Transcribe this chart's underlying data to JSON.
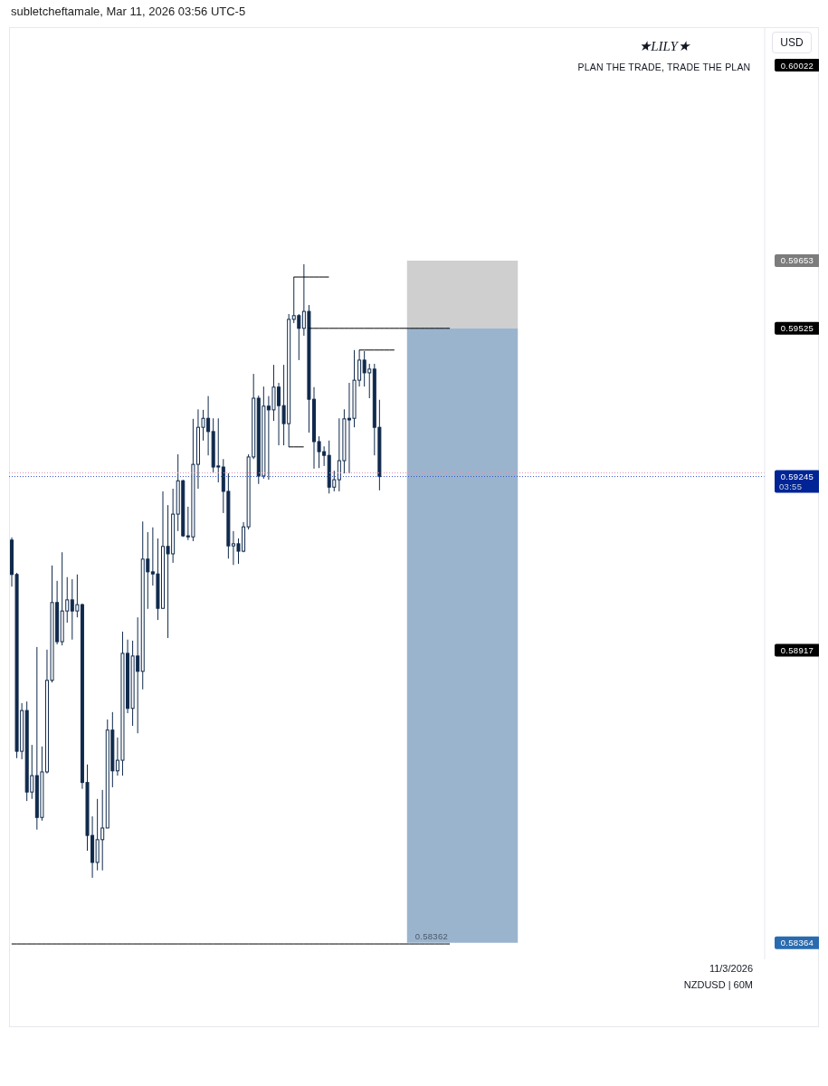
{
  "chart_data": {
    "type": "candlestick",
    "title": "★LILY★",
    "subtitle": "PLAN THE TRADE, TRADE THE PLAN",
    "ylabel": "USD",
    "categories": [
      null,
      null,
      null,
      null,
      null,
      null,
      null,
      null,
      null,
      null,
      null,
      null,
      null,
      null,
      null,
      null,
      null,
      null,
      null,
      null,
      null,
      null,
      null,
      null,
      null,
      null,
      null,
      null,
      null,
      null,
      null,
      null,
      null,
      null,
      null,
      null,
      null,
      null,
      null,
      null,
      null,
      null,
      null,
      null,
      null,
      null,
      null,
      null,
      null,
      null,
      null,
      null,
      null,
      null,
      null,
      null,
      null,
      null,
      null,
      null,
      null,
      null,
      null,
      null,
      null,
      null,
      null,
      null,
      null,
      null,
      null,
      null,
      null,
      null,
      null,
      null,
      null,
      null,
      null,
      null,
      null,
      null,
      null,
      null,
      null,
      null,
      null,
      null,
      null,
      null,
      null,
      null,
      null,
      null,
      null,
      null,
      null,
      null,
      null,
      null,
      null,
      null,
      null,
      null,
      null,
      null,
      null,
      null,
      null,
      null,
      null,
      null,
      null,
      null,
      null,
      null,
      null,
      null,
      null,
      null,
      null,
      null,
      null,
      null,
      null,
      null,
      null,
      null,
      null,
      null,
      null,
      null,
      null,
      null,
      null,
      null,
      null,
      null,
      null,
      null,
      null,
      null,
      null,
      null,
      null,
      null,
      null,
      null,
      null,
      null
    ],
    "series": [
      {
        "color": "#102a4c",
        "ohlc": [
          [
            0.59125,
            0.5913,
            0.59037,
            0.5906
          ],
          [
            0.5906,
            0.59063,
            0.58713,
            0.58726
          ],
          [
            0.58726,
            0.58817,
            0.58711,
            0.58803
          ],
          [
            0.58803,
            0.5882,
            0.58632,
            0.58649
          ],
          [
            0.58649,
            0.58738,
            0.58636,
            0.5868
          ],
          [
            0.5868,
            0.58923,
            0.58578,
            0.58601
          ],
          [
            0.58601,
            0.58735,
            0.58595,
            0.58687
          ],
          [
            0.58687,
            0.58918,
            0.58684,
            0.5886
          ],
          [
            0.5886,
            0.59077,
            0.58856,
            0.59007
          ],
          [
            0.59007,
            0.59048,
            0.58928,
            0.58933
          ],
          [
            0.58933,
            0.59102,
            0.58926,
            0.58991
          ],
          [
            0.58991,
            0.59055,
            0.58969,
            0.59012
          ],
          [
            0.59012,
            0.59051,
            0.58937,
            0.58991
          ],
          [
            0.58991,
            0.5906,
            0.58979,
            0.59003
          ],
          [
            0.59003,
            0.59005,
            0.58655,
            0.58667
          ],
          [
            0.58667,
            0.58701,
            0.58538,
            0.58567
          ],
          [
            0.58567,
            0.58603,
            0.58487,
            0.58516
          ],
          [
            0.58516,
            0.58636,
            0.58501,
            0.58559
          ],
          [
            0.58559,
            0.58653,
            0.58501,
            0.58581
          ],
          [
            0.58581,
            0.58786,
            0.58581,
            0.58766
          ],
          [
            0.58766,
            0.588,
            0.58658,
            0.58689
          ],
          [
            0.58689,
            0.58752,
            0.5868,
            0.58709
          ],
          [
            0.58709,
            0.58952,
            0.5868,
            0.58911
          ],
          [
            0.58911,
            0.58937,
            0.58798,
            0.58807
          ],
          [
            0.58807,
            0.58935,
            0.58774,
            0.58906
          ],
          [
            0.58906,
            0.58979,
            0.5876,
            0.58877
          ],
          [
            0.58877,
            0.5916,
            0.58843,
            0.59089
          ],
          [
            0.59089,
            0.5914,
            0.58995,
            0.59065
          ],
          [
            0.59065,
            0.59149,
            0.59039,
            0.59061
          ],
          [
            0.59061,
            0.59128,
            0.58974,
            0.58996
          ],
          [
            0.58996,
            0.59217,
            0.58995,
            0.59113
          ],
          [
            0.59113,
            0.59191,
            0.5894,
            0.59099
          ],
          [
            0.59099,
            0.59222,
            0.59082,
            0.59174
          ],
          [
            0.59174,
            0.59287,
            0.59142,
            0.59237
          ],
          [
            0.59237,
            0.59239,
            0.59131,
            0.59133
          ],
          [
            0.59133,
            0.59188,
            0.59125,
            0.59131
          ],
          [
            0.59131,
            0.59354,
            0.59123,
            0.59268
          ],
          [
            0.59268,
            0.59372,
            0.59222,
            0.59338
          ],
          [
            0.59338,
            0.59371,
            0.59313,
            0.59355
          ],
          [
            0.59355,
            0.59397,
            0.59285,
            0.5933
          ],
          [
            0.5933,
            0.59355,
            0.59253,
            0.59263
          ],
          [
            0.59265,
            0.59355,
            0.59234,
            0.59263
          ],
          [
            0.59263,
            0.59278,
            0.59176,
            0.59217
          ],
          [
            0.59217,
            0.59251,
            0.5909,
            0.59114
          ],
          [
            0.59114,
            0.59142,
            0.59078,
            0.59118
          ],
          [
            0.59118,
            0.59128,
            0.5908,
            0.59104
          ],
          [
            0.59104,
            0.59159,
            0.59102,
            0.5915
          ],
          [
            0.5915,
            0.59287,
            0.59145,
            0.59282
          ],
          [
            0.59282,
            0.59439,
            0.59278,
            0.59393
          ],
          [
            0.59393,
            0.59398,
            0.59231,
            0.59246
          ],
          [
            0.59246,
            0.59415,
            0.59241,
            0.59378
          ],
          [
            0.59378,
            0.59397,
            0.59239,
            0.59371
          ],
          [
            0.59371,
            0.59456,
            0.5935,
            0.59414
          ],
          [
            0.59414,
            0.59422,
            0.59304,
            0.59379
          ],
          [
            0.59379,
            0.59456,
            0.59304,
            0.59345
          ],
          [
            0.59345,
            0.59552,
            0.59301,
            0.59542
          ],
          [
            0.59542,
            0.59622,
            0.59535,
            0.59549
          ],
          [
            0.59549,
            0.59552,
            0.59465,
            0.59525
          ],
          [
            0.59525,
            0.59646,
            0.59511,
            0.59557
          ],
          [
            0.59557,
            0.59569,
            0.59328,
            0.59391
          ],
          [
            0.59391,
            0.59414,
            0.5926,
            0.59311
          ],
          [
            0.59311,
            0.59321,
            0.59261,
            0.59292
          ],
          [
            0.59292,
            0.59302,
            0.59265,
            0.59285
          ],
          [
            0.59285,
            0.59313,
            0.59213,
            0.59225
          ],
          [
            0.59225,
            0.59256,
            0.59217,
            0.59239
          ],
          [
            0.59239,
            0.59355,
            0.59217,
            0.59275
          ],
          [
            0.59275,
            0.59372,
            0.59251,
            0.59354
          ],
          [
            0.59355,
            0.59422,
            0.59251,
            0.59352
          ],
          [
            0.59355,
            0.59484,
            0.59338,
            0.59427
          ],
          [
            0.59427,
            0.59484,
            0.59415,
            0.59465
          ],
          [
            0.59465,
            0.59482,
            0.59415,
            0.59441
          ],
          [
            0.59441,
            0.59458,
            0.59393,
            0.59448
          ],
          [
            0.59448,
            0.59458,
            0.59285,
            0.59338
          ],
          [
            0.59338,
            0.5939,
            0.59219,
            0.59245
          ],
          null,
          null,
          null,
          null,
          null,
          null,
          null,
          null,
          null,
          null,
          null,
          null,
          null,
          null,
          null,
          null,
          null,
          null,
          null,
          null,
          null,
          null,
          null,
          null,
          null,
          null,
          null,
          null,
          null,
          null,
          null,
          null,
          null,
          null,
          null,
          null,
          null,
          null,
          null,
          null,
          null,
          null,
          null,
          null,
          null,
          null,
          null,
          null,
          null,
          null,
          null,
          null,
          null,
          null,
          null,
          null,
          null,
          null,
          null,
          null,
          null,
          null,
          null,
          null,
          null,
          null,
          null,
          null,
          null,
          null,
          null,
          null,
          null,
          null,
          null,
          null
        ]
      },
      {
        "type": "line",
        "color": "#000000",
        "values": [
          null,
          null,
          null,
          null,
          null,
          null,
          null,
          null,
          null,
          null,
          null,
          null,
          null,
          null,
          null,
          null,
          null,
          null,
          null,
          null,
          null,
          null,
          null,
          null,
          null,
          null,
          null,
          null,
          null,
          null,
          null,
          null,
          null,
          null,
          null,
          null,
          null,
          null,
          null,
          null,
          null,
          null,
          null,
          null,
          null,
          null,
          null,
          null,
          null,
          null,
          null,
          null,
          null,
          null,
          null,
          null,
          0.59622,
          0.59622,
          0.59622,
          0.59622,
          0.59622,
          0.59622,
          0.59622,
          0.59622,
          null,
          null,
          null,
          null,
          null,
          null,
          null,
          null,
          null,
          null,
          null,
          null,
          null,
          null,
          null,
          null,
          null,
          null,
          null,
          null,
          null,
          null,
          null,
          null,
          null,
          null,
          null,
          null,
          null,
          null,
          null,
          null,
          null,
          null,
          null,
          null,
          null,
          null,
          null,
          null,
          null,
          null,
          null,
          null,
          null,
          null,
          null,
          null,
          null,
          null,
          null,
          null,
          null,
          null,
          null,
          null,
          null,
          null,
          null,
          null,
          null,
          null,
          null,
          null,
          null,
          null,
          null,
          null,
          null,
          null,
          null,
          null,
          null,
          null,
          null,
          null,
          null,
          null,
          null,
          null,
          null,
          null,
          null,
          null,
          null,
          null
        ]
      },
      {
        "type": "line",
        "color": "#000000",
        "values": [
          null,
          null,
          null,
          null,
          null,
          null,
          null,
          null,
          null,
          null,
          null,
          null,
          null,
          null,
          null,
          null,
          null,
          null,
          null,
          null,
          null,
          null,
          null,
          null,
          null,
          null,
          null,
          null,
          null,
          null,
          null,
          null,
          null,
          null,
          null,
          null,
          null,
          null,
          null,
          null,
          null,
          null,
          null,
          null,
          null,
          null,
          null,
          null,
          null,
          null,
          null,
          null,
          null,
          null,
          null,
          0.59301,
          0.59301,
          0.59301,
          0.59301,
          null,
          null,
          null,
          null,
          null,
          null,
          null,
          null,
          null,
          null,
          null,
          null,
          null,
          null,
          null,
          null,
          null,
          null,
          null,
          null,
          null,
          null,
          null,
          null,
          null,
          null,
          null,
          null,
          null,
          null,
          null,
          null,
          null,
          null,
          null,
          null,
          null,
          null,
          null,
          null,
          null,
          null,
          null,
          null,
          null,
          null,
          null,
          null,
          null,
          null,
          null,
          null,
          null,
          null,
          null,
          null,
          null,
          null,
          null,
          null,
          null,
          null,
          null,
          null,
          null,
          null,
          null,
          null,
          null,
          null,
          null,
          null,
          null,
          null,
          null,
          null,
          null,
          null,
          null,
          null,
          null,
          null,
          null,
          null,
          null,
          null,
          null,
          null,
          null,
          null,
          null
        ]
      },
      {
        "type": "line",
        "color": "#000000",
        "values": [
          null,
          null,
          null,
          null,
          null,
          null,
          null,
          null,
          null,
          null,
          null,
          null,
          null,
          null,
          null,
          null,
          null,
          null,
          null,
          null,
          null,
          null,
          null,
          null,
          null,
          null,
          null,
          null,
          null,
          null,
          null,
          null,
          null,
          null,
          null,
          null,
          null,
          null,
          null,
          null,
          null,
          null,
          null,
          null,
          null,
          null,
          null,
          null,
          null,
          null,
          null,
          null,
          null,
          null,
          null,
          null,
          null,
          null,
          null,
          null,
          null,
          null,
          null,
          null,
          null,
          null,
          null,
          null,
          null,
          0.59484,
          0.59484,
          0.59484,
          0.59484,
          0.59484,
          0.59484,
          0.59484,
          0.59484,
          null,
          null,
          null,
          null,
          null,
          null,
          null,
          null,
          null,
          null,
          null,
          null,
          null,
          null,
          null,
          null,
          null,
          null,
          null,
          null,
          null,
          null,
          null,
          null,
          null,
          null,
          null,
          null,
          null,
          null,
          null,
          null,
          null,
          null,
          null,
          null,
          null,
          null,
          null,
          null,
          null,
          null,
          null,
          null,
          null,
          null,
          null,
          null,
          null,
          null,
          null,
          null,
          null,
          null,
          null,
          null,
          null,
          null,
          null,
          null,
          null,
          null,
          null,
          null,
          null,
          null,
          null,
          null,
          null,
          null,
          null,
          null,
          null
        ]
      },
      {
        "type": "line",
        "color": "#000000",
        "values": [
          null,
          null,
          null,
          null,
          null,
          null,
          null,
          null,
          null,
          null,
          null,
          null,
          null,
          null,
          null,
          null,
          null,
          null,
          null,
          null,
          null,
          null,
          null,
          null,
          null,
          null,
          null,
          null,
          null,
          null,
          null,
          null,
          null,
          null,
          null,
          null,
          null,
          null,
          null,
          null,
          null,
          null,
          null,
          null,
          null,
          null,
          null,
          null,
          null,
          null,
          null,
          null,
          null,
          null,
          null,
          null,
          null,
          null,
          null,
          0.59525,
          0.59525,
          0.59525,
          0.59525,
          0.59525,
          0.59525,
          0.59525,
          0.59525,
          0.59525,
          0.59525,
          0.59525,
          0.59525,
          0.59525,
          0.59525,
          0.59525,
          0.59525,
          0.59525,
          0.59525,
          0.59525,
          0.59525,
          0.59525,
          0.59525,
          0.59525,
          0.59525,
          0.59525,
          0.59525,
          0.59525,
          0.59525,
          0.59525,
          null,
          null,
          null,
          null,
          null,
          null,
          null,
          null,
          null,
          null,
          null,
          null,
          null,
          null,
          null,
          null,
          null,
          null,
          null,
          null,
          null,
          null,
          null,
          null,
          null,
          null,
          null,
          null,
          null,
          null,
          null,
          null,
          null,
          null,
          null,
          null,
          null,
          null,
          null,
          null,
          null,
          null,
          null,
          null,
          null,
          null,
          null,
          null,
          null,
          null,
          null,
          null,
          null,
          null,
          null,
          null,
          null,
          null,
          null,
          null,
          null,
          null
        ]
      },
      {
        "type": "line",
        "name": "0.58362",
        "color": "#000000",
        "values": [
          0.58362,
          0.58362,
          0.58362,
          0.58362,
          0.58362,
          0.58362,
          0.58362,
          0.58362,
          0.58362,
          0.58362,
          0.58362,
          0.58362,
          0.58362,
          0.58362,
          0.58362,
          0.58362,
          0.58362,
          0.58362,
          0.58362,
          0.58362,
          0.58362,
          0.58362,
          0.58362,
          0.58362,
          0.58362,
          0.58362,
          0.58362,
          0.58362,
          0.58362,
          0.58362,
          0.58362,
          0.58362,
          0.58362,
          0.58362,
          0.58362,
          0.58362,
          0.58362,
          0.58362,
          0.58362,
          0.58362,
          0.58362,
          0.58362,
          0.58362,
          0.58362,
          0.58362,
          0.58362,
          0.58362,
          0.58362,
          0.58362,
          0.58362,
          0.58362,
          0.58362,
          0.58362,
          0.58362,
          0.58362,
          0.58362,
          0.58362,
          0.58362,
          0.58362,
          0.58362,
          0.58362,
          0.58362,
          0.58362,
          0.58362,
          0.58362,
          0.58362,
          0.58362,
          0.58362,
          0.58362,
          0.58362,
          0.58362,
          0.58362,
          0.58362,
          0.58362,
          0.58362,
          0.58362,
          0.58362,
          0.58362,
          0.58362,
          0.58362,
          0.58362,
          0.58362,
          0.58362,
          0.58362,
          0.58362,
          0.58362,
          0.58362,
          0.58362,
          null,
          null,
          null,
          null,
          null,
          null,
          null,
          null,
          null,
          null,
          null,
          null,
          null,
          null,
          null,
          null,
          null,
          null,
          null,
          null,
          null,
          null,
          null,
          null,
          null,
          null,
          null,
          null,
          null,
          null,
          null,
          null,
          null,
          null,
          null,
          null,
          null,
          null,
          null,
          null,
          null,
          null,
          null,
          null,
          null,
          null,
          null,
          null,
          null,
          null,
          null,
          null,
          null,
          null,
          null,
          null,
          null,
          null,
          null,
          null,
          null,
          null
        ]
      }
    ],
    "ylim": [
      0.58333,
      0.60094
    ],
    "yticks": [
      0.60022,
      0.59653,
      0.59525,
      0.59245,
      0.58917,
      0.58364
    ],
    "tick_labels": "y",
    "ref_lines": [
      {
        "axis": "y",
        "value": 0.59252,
        "color": "#e88fb0",
        "line_style": "dotted"
      },
      {
        "axis": "y",
        "value": 0.59245,
        "color": "#2f54c9",
        "line_style": "dotted"
      }
    ],
    "bands": [
      {
        "axis": "y",
        "from": 0.59525,
        "to": 0.59653,
        "color": "#cfcfcf"
      },
      {
        "axis": "y",
        "from": 0.58364,
        "to": 0.59525,
        "color": "#9bb4ce"
      }
    ],
    "annotations": [
      "subletcheftamale, Mar 11, 2026 03:56 UTC-5",
      "03:55",
      "11/3/2026",
      "NZDUSD | 60M"
    ]
  }
}
